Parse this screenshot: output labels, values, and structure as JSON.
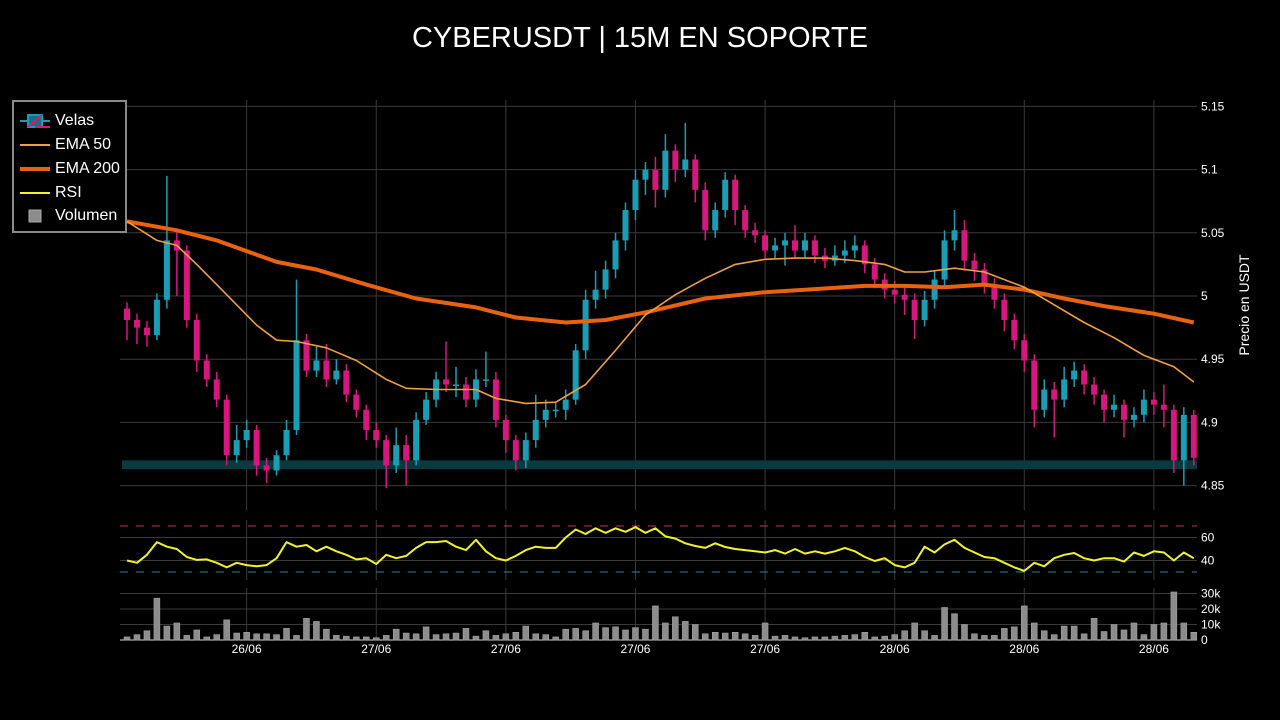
{
  "title": "CYBERUSDT | 15M EN SOPORTE",
  "legend": {
    "items": [
      {
        "label": "Velas",
        "icon": "candlestick-icon"
      },
      {
        "label": "EMA 50",
        "color": "#f0a040"
      },
      {
        "label": "EMA 200",
        "color": "#e8620f"
      },
      {
        "label": "RSI",
        "color": "#f2f22c"
      },
      {
        "label": "Volumen",
        "color": "#8c8c8c"
      }
    ]
  },
  "chart_data": {
    "type": "candlestick",
    "title": "CYBERUSDT | 15M EN SOPORTE",
    "ylabel": "Precio en USDT",
    "grid": true,
    "legend_position": "top-left",
    "colors": {
      "increasing": "#1a9eb5",
      "decreasing": "#d6177e",
      "ema50": "#f0a040",
      "ema200": "#e8620f",
      "rsi": "#f2f22c",
      "volume": "#8c8c8c",
      "support": "#0b3a3e",
      "rsi_upper": "#c2306a",
      "rsi_lower": "#1f8a96"
    },
    "price_axis": {
      "range": [
        4.835,
        5.16
      ],
      "ticks": [
        "4.85",
        "4.9",
        "4.95",
        "5",
        "5.05",
        "5.1",
        "5.15"
      ]
    },
    "x_ticks": [
      {
        "label": "26/06",
        "candle": 12
      },
      {
        "label": "27/06",
        "candle": 25
      },
      {
        "label": "27/06",
        "candle": 38
      },
      {
        "label": "27/06",
        "candle": 51
      },
      {
        "label": "27/06",
        "candle": 64
      },
      {
        "label": "28/06",
        "candle": 77
      },
      {
        "label": "28/06",
        "candle": 90
      },
      {
        "label": "28/06",
        "candle": 103
      }
    ],
    "support_zone": [
      4.863,
      4.87
    ],
    "open": [
      4.99,
      4.981,
      4.975,
      4.969,
      4.997,
      5.044,
      5.036,
      4.981,
      4.949,
      4.934,
      4.918,
      4.874,
      4.886,
      4.894,
      4.866,
      4.862,
      4.874,
      4.894,
      4.965,
      4.941,
      4.949,
      4.934,
      4.941,
      4.922,
      4.91,
      4.894,
      4.886,
      4.866,
      4.882,
      4.87,
      4.902,
      4.918,
      4.934,
      4.93,
      4.93,
      4.918,
      4.934,
      4.934,
      4.902,
      4.886,
      4.87,
      4.886,
      4.902,
      4.91,
      4.91,
      4.918,
      4.957,
      4.997,
      5.005,
      5.021,
      5.044,
      5.068,
      5.092,
      5.1,
      5.084,
      5.115,
      5.1,
      5.108,
      5.084,
      5.052,
      5.068,
      5.092,
      5.068,
      5.052,
      5.048,
      5.036,
      5.04,
      5.044,
      5.036,
      5.044,
      5.032,
      5.028,
      5.032,
      5.036,
      5.04,
      5.025,
      5.013,
      5.005,
      5.001,
      4.997,
      4.981,
      4.997,
      5.013,
      5.044,
      5.052,
      5.028,
      5.021,
      5.009,
      4.997,
      4.981,
      4.965,
      4.949,
      4.91,
      4.926,
      4.918,
      4.934,
      4.941,
      4.93,
      4.922,
      4.91,
      4.914,
      4.902,
      4.906,
      4.918,
      4.914,
      4.91,
      4.87,
      4.906
    ],
    "high": [
      4.995,
      4.986,
      4.98,
      5.002,
      5.095,
      5.052,
      5.04,
      4.986,
      4.954,
      4.94,
      4.922,
      4.898,
      4.902,
      4.898,
      4.872,
      4.878,
      4.902,
      5.013,
      4.97,
      4.96,
      4.962,
      4.95,
      4.946,
      4.926,
      4.914,
      4.9,
      4.89,
      4.896,
      4.89,
      4.908,
      4.924,
      4.94,
      4.964,
      4.944,
      4.936,
      4.942,
      4.956,
      4.94,
      4.906,
      4.89,
      4.892,
      4.922,
      4.918,
      4.916,
      4.926,
      4.962,
      5.005,
      5.02,
      5.028,
      5.05,
      5.074,
      5.1,
      5.106,
      5.11,
      5.128,
      5.12,
      5.137,
      5.112,
      5.09,
      5.074,
      5.098,
      5.096,
      5.072,
      5.058,
      5.052,
      5.046,
      5.05,
      5.056,
      5.05,
      5.048,
      5.038,
      5.04,
      5.044,
      5.048,
      5.044,
      5.03,
      5.018,
      5.012,
      5.008,
      5.002,
      5.004,
      5.02,
      5.052,
      5.068,
      5.06,
      5.034,
      5.026,
      5.014,
      5.002,
      4.986,
      4.97,
      4.954,
      4.934,
      4.932,
      4.944,
      4.948,
      4.946,
      4.936,
      4.926,
      4.922,
      4.918,
      4.912,
      4.926,
      4.924,
      4.93,
      4.914,
      4.912,
      4.91
    ],
    "low": [
      4.965,
      4.962,
      4.96,
      4.965,
      4.99,
      5.0,
      4.975,
      4.94,
      4.928,
      4.912,
      4.866,
      4.868,
      4.88,
      4.858,
      4.852,
      4.858,
      4.87,
      4.89,
      4.936,
      4.936,
      4.928,
      4.93,
      4.916,
      4.904,
      4.886,
      4.88,
      4.848,
      4.86,
      4.85,
      4.866,
      4.898,
      4.912,
      4.924,
      4.92,
      4.912,
      4.912,
      4.928,
      4.896,
      4.876,
      4.862,
      4.864,
      4.88,
      4.896,
      4.904,
      4.902,
      4.914,
      4.95,
      4.99,
      4.998,
      5.014,
      5.036,
      5.06,
      5.08,
      5.07,
      5.078,
      5.09,
      5.094,
      5.074,
      5.044,
      5.046,
      5.062,
      5.056,
      5.046,
      5.042,
      5.03,
      5.03,
      5.024,
      5.03,
      5.03,
      5.026,
      5.022,
      5.024,
      5.026,
      5.03,
      5.018,
      5.006,
      4.998,
      4.994,
      4.985,
      4.966,
      4.976,
      4.99,
      5.006,
      5.036,
      5.02,
      5.012,
      5.002,
      4.99,
      4.972,
      4.958,
      4.94,
      4.896,
      4.904,
      4.888,
      4.912,
      4.928,
      4.922,
      4.914,
      4.9,
      4.904,
      4.888,
      4.896,
      4.9,
      4.906,
      4.896,
      4.86,
      4.85,
      4.866
    ],
    "close": [
      4.981,
      4.975,
      4.969,
      4.997,
      5.044,
      5.036,
      4.981,
      4.949,
      4.934,
      4.918,
      4.874,
      4.886,
      4.894,
      4.866,
      4.862,
      4.874,
      4.894,
      4.965,
      4.941,
      4.949,
      4.934,
      4.941,
      4.922,
      4.91,
      4.894,
      4.886,
      4.866,
      4.882,
      4.87,
      4.902,
      4.918,
      4.934,
      4.93,
      4.93,
      4.918,
      4.934,
      4.934,
      4.902,
      4.886,
      4.87,
      4.886,
      4.902,
      4.91,
      4.91,
      4.918,
      4.957,
      4.997,
      5.005,
      5.021,
      5.044,
      5.068,
      5.092,
      5.1,
      5.084,
      5.115,
      5.1,
      5.108,
      5.084,
      5.052,
      5.068,
      5.092,
      5.068,
      5.052,
      5.048,
      5.036,
      5.04,
      5.044,
      5.036,
      5.044,
      5.032,
      5.028,
      5.032,
      5.036,
      5.04,
      5.025,
      5.013,
      5.005,
      5.001,
      4.997,
      4.981,
      4.997,
      5.013,
      5.044,
      5.052,
      5.028,
      5.021,
      5.009,
      4.997,
      4.981,
      4.965,
      4.949,
      4.91,
      4.926,
      4.918,
      4.934,
      4.941,
      4.93,
      4.922,
      4.91,
      4.914,
      4.902,
      4.906,
      4.918,
      4.914,
      4.91,
      4.87,
      4.906,
      4.872
    ],
    "ema50": [
      [
        0,
        5.059
      ],
      [
        3,
        5.044
      ],
      [
        5,
        5.04
      ],
      [
        7,
        5.025
      ],
      [
        10,
        5.001
      ],
      [
        13,
        4.977
      ],
      [
        15,
        4.965
      ],
      [
        17,
        4.964
      ],
      [
        20,
        4.959
      ],
      [
        23,
        4.949
      ],
      [
        26,
        4.934
      ],
      [
        28,
        4.927
      ],
      [
        31,
        4.926
      ],
      [
        35,
        4.926
      ],
      [
        37,
        4.919
      ],
      [
        40,
        4.915
      ],
      [
        43,
        4.916
      ],
      [
        46,
        4.93
      ],
      [
        49,
        4.957
      ],
      [
        52,
        4.985
      ],
      [
        55,
        5.001
      ],
      [
        58,
        5.014
      ],
      [
        61,
        5.025
      ],
      [
        64,
        5.029
      ],
      [
        67,
        5.03
      ],
      [
        70,
        5.03
      ],
      [
        73,
        5.028
      ],
      [
        76,
        5.025
      ],
      [
        78,
        5.019
      ],
      [
        80,
        5.019
      ],
      [
        83,
        5.022
      ],
      [
        86,
        5.019
      ],
      [
        90,
        5.007
      ],
      [
        93,
        4.993
      ],
      [
        96,
        4.979
      ],
      [
        99,
        4.967
      ],
      [
        102,
        4.953
      ],
      [
        105,
        4.944
      ],
      [
        107,
        4.932
      ]
    ],
    "ema200": [
      [
        0,
        5.059
      ],
      [
        5,
        5.052
      ],
      [
        9,
        5.044
      ],
      [
        15,
        5.027
      ],
      [
        19,
        5.021
      ],
      [
        24,
        5.009
      ],
      [
        29,
        4.998
      ],
      [
        35,
        4.991
      ],
      [
        39,
        4.983
      ],
      [
        44,
        4.979
      ],
      [
        48,
        4.981
      ],
      [
        52,
        4.987
      ],
      [
        58,
        4.998
      ],
      [
        64,
        5.003
      ],
      [
        68,
        5.005
      ],
      [
        74,
        5.008
      ],
      [
        78,
        5.008
      ],
      [
        82,
        5.007
      ],
      [
        86,
        5.009
      ],
      [
        90,
        5.005
      ],
      [
        94,
        4.998
      ],
      [
        98,
        4.992
      ],
      [
        103,
        4.986
      ],
      [
        107,
        4.979
      ]
    ],
    "rsi": {
      "ticks": [
        "40",
        "60"
      ],
      "levels": [
        30,
        70
      ],
      "values": [
        40,
        38,
        45,
        56,
        52,
        50,
        43,
        40.5,
        41,
        38,
        34,
        38,
        36,
        35,
        36,
        42,
        56,
        52,
        53.5,
        48,
        52,
        48,
        45,
        41,
        42,
        37,
        45,
        42,
        44,
        51,
        56,
        56,
        57,
        52,
        49,
        58,
        48,
        42,
        40,
        44,
        49,
        52,
        51,
        51,
        60,
        67,
        63,
        68,
        64,
        68,
        65,
        69,
        64,
        68,
        61,
        59,
        55,
        52.6,
        51,
        55,
        51.7,
        50,
        49,
        48,
        47,
        49,
        46,
        50,
        46,
        48,
        46,
        48,
        51,
        48,
        43,
        39.6,
        42,
        36,
        34,
        38,
        52,
        47,
        54,
        58,
        51,
        47,
        43,
        42,
        38,
        34,
        31,
        38,
        35,
        42,
        45,
        46.5,
        42,
        40,
        42,
        42,
        39,
        47,
        44,
        48,
        47,
        40,
        47,
        42
      ]
    },
    "volume": {
      "ticks": [
        "0",
        "10k",
        "20k",
        "30k"
      ],
      "values": [
        2000,
        3500,
        6000,
        27000,
        9000,
        11000,
        3000,
        6500,
        2000,
        3500,
        13000,
        4500,
        5000,
        4000,
        4000,
        3500,
        7500,
        3000,
        14000,
        12000,
        7000,
        3000,
        2500,
        2000,
        2000,
        1500,
        3000,
        7000,
        4500,
        4000,
        8500,
        3500,
        4000,
        4500,
        7500,
        2500,
        6000,
        3000,
        4000,
        5000,
        9000,
        4000,
        3500,
        2000,
        7000,
        7500,
        6000,
        11000,
        8000,
        8500,
        6500,
        8000,
        7000,
        22000,
        11000,
        15000,
        12000,
        10000,
        4000,
        5000,
        4500,
        5000,
        4000,
        3000,
        11000,
        2500,
        3000,
        2000,
        1500,
        2000,
        2000,
        2500,
        3000,
        3500,
        5000,
        2000,
        2500,
        3500,
        6000,
        11000,
        6000,
        3000,
        21000,
        17000,
        10000,
        4000,
        3000,
        3000,
        7500,
        8500,
        22000,
        11000,
        6000,
        3500,
        9000,
        9000,
        4000,
        14000,
        5500,
        10000,
        6500,
        11000,
        3500,
        10000,
        11000,
        31000,
        11000,
        5000
      ]
    }
  }
}
